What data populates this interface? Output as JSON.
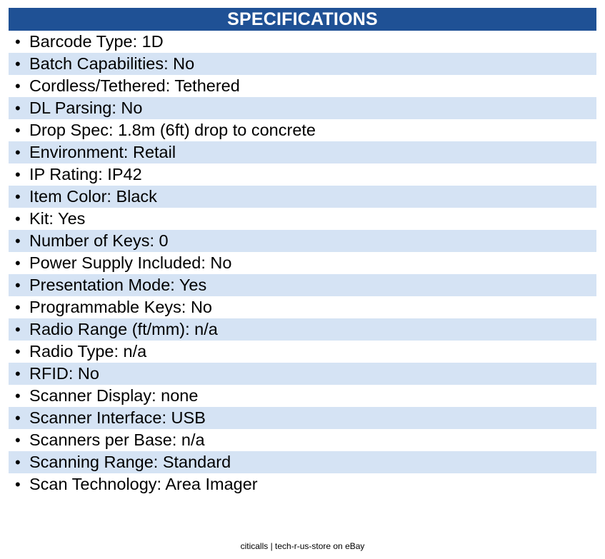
{
  "header": {
    "title": "SPECIFICATIONS"
  },
  "bullet_glyph": "•",
  "specs": [
    "Barcode Type: 1D",
    "Batch Capabilities: No",
    "Cordless/Tethered: Tethered",
    "DL Parsing: No",
    "Drop Spec: 1.8m (6ft) drop to concrete",
    "Environment: Retail",
    "IP Rating: IP42",
    "Item Color: Black",
    "Kit: Yes",
    "Number of Keys: 0",
    "Power Supply Included: No",
    "Presentation Mode: Yes",
    "Programmable Keys: No",
    "Radio Range (ft/mm): n/a",
    "Radio Type: n/a",
    "RFID: No",
    "Scanner Display: none",
    "Scanner Interface: USB",
    "Scanners per Base: n/a",
    "Scanning Range: Standard",
    "Scan Technology: Area Imager"
  ],
  "footer": {
    "text": "citicalls | tech-r-us-store on eBay"
  },
  "colors": {
    "header_bg": "#1f5195",
    "header_text": "#ffffff",
    "stripe_bg": "#d5e3f4",
    "text": "#000000"
  }
}
